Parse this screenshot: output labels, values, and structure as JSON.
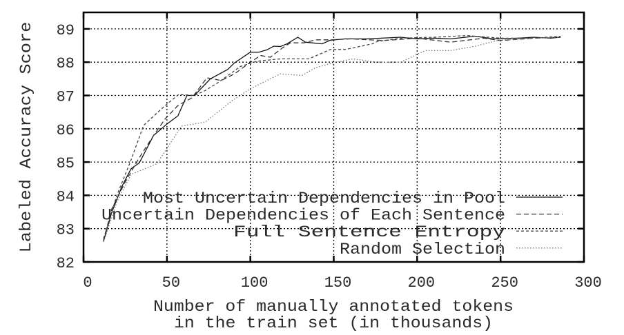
{
  "chart_data": {
    "type": "line",
    "title": "",
    "xlabel": [
      "Number of manually annotated tokens",
      "in the train set (in thousands)"
    ],
    "ylabel": "Labeled Accuracy Score",
    "xlim": [
      0,
      300
    ],
    "ylim": [
      82,
      89.5
    ],
    "xticks": [
      "0",
      "50",
      "100",
      "150",
      "200",
      "250",
      "300"
    ],
    "yticks": [
      "82",
      "83",
      "84",
      "85",
      "86",
      "87",
      "88",
      "89"
    ],
    "grid": true,
    "legend_position": "bottom-right",
    "series": [
      {
        "name": "Most Uncertain Dependencies in Pool",
        "style": "solid",
        "color": "#111111",
        "x": [
          12,
          17,
          23,
          28.5,
          33.5,
          42,
          50,
          56.6,
          62,
          66.5,
          76,
          86.4,
          90.5,
          100,
          105,
          110,
          114,
          118,
          122,
          128.5,
          133,
          143,
          148,
          157,
          170,
          190,
          200,
          210,
          220,
          235,
          245,
          260,
          270,
          280,
          286
        ],
        "y": [
          82.62,
          83.5,
          84.27,
          84.8,
          84.98,
          85.8,
          86.14,
          86.39,
          87.0,
          87.0,
          87.5,
          87.78,
          87.98,
          88.3,
          88.3,
          88.37,
          88.48,
          88.47,
          88.55,
          88.75,
          88.6,
          88.55,
          88.66,
          88.7,
          88.7,
          88.75,
          88.7,
          88.72,
          88.7,
          88.78,
          88.7,
          88.72,
          88.75,
          88.72,
          88.75
        ]
      },
      {
        "name": "Uncertain Dependencies of Each Sentence",
        "style": "dashed",
        "color": "#333333",
        "x": [
          12,
          17,
          25,
          33,
          42,
          49,
          56.6,
          65,
          74,
          82.6,
          90.5,
          99,
          106,
          112,
          119,
          124,
          132,
          139,
          148,
          160,
          180,
          200,
          220,
          240,
          250,
          270,
          286
        ],
        "y": [
          82.65,
          83.6,
          84.4,
          85.1,
          85.8,
          86.3,
          86.7,
          86.93,
          87.53,
          87.45,
          87.65,
          87.96,
          88.2,
          88.15,
          88.42,
          88.58,
          88.58,
          88.67,
          88.67,
          88.7,
          88.65,
          88.72,
          88.6,
          88.72,
          88.65,
          88.72,
          88.75
        ]
      },
      {
        "name": "Full Sentence Entropy",
        "style": "short-dashed",
        "color": "#444444",
        "x": [
          12,
          20,
          28,
          36,
          49,
          57,
          66.5,
          73,
          81,
          94,
          104,
          118,
          135,
          148,
          157,
          173,
          176,
          190,
          210,
          230,
          250,
          270,
          286
        ],
        "y": [
          82.7,
          84.0,
          85.0,
          86.1,
          86.7,
          87.03,
          87.0,
          87.15,
          87.4,
          87.87,
          88.03,
          88.1,
          88.1,
          88.38,
          88.38,
          88.55,
          88.62,
          88.72,
          88.75,
          88.8,
          88.72,
          88.72,
          88.78
        ]
      },
      {
        "name": "Random Selection",
        "style": "dotted",
        "color": "#777777",
        "x": [
          12,
          20,
          28.5,
          44,
          58.7,
          73,
          89,
          100,
          118,
          131,
          139,
          148,
          161.5,
          176,
          190,
          205,
          220,
          235,
          249,
          270,
          286
        ],
        "y": [
          82.6,
          83.8,
          84.63,
          84.95,
          86.08,
          86.2,
          86.84,
          87.2,
          87.65,
          87.6,
          87.83,
          87.96,
          88.1,
          88.0,
          88.0,
          88.35,
          88.35,
          88.48,
          88.66,
          88.72,
          88.75
        ]
      }
    ]
  }
}
